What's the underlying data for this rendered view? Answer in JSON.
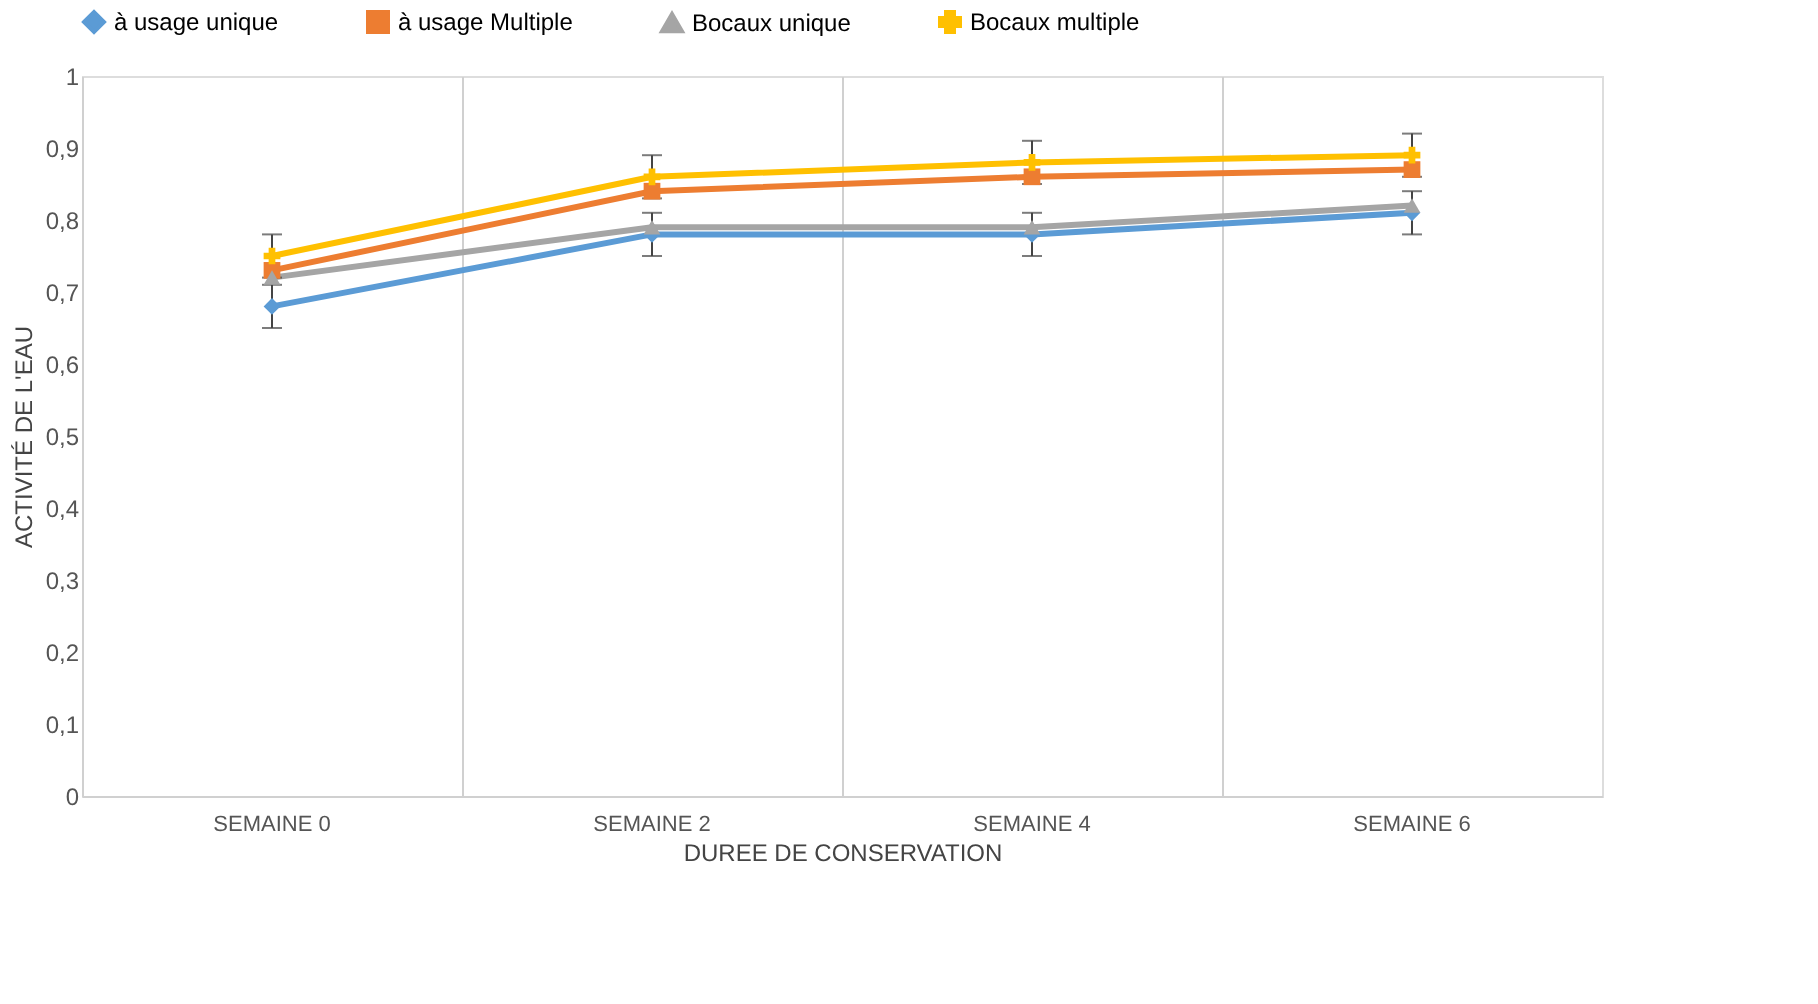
{
  "chart_data": {
    "type": "line",
    "xlabel": "DUREE DE CONSERVATION",
    "ylabel": "ACTIVITÉ DE L'EAU",
    "categories": [
      "SEMAINE 0",
      "SEMAINE 2",
      "SEMAINE 4",
      "SEMAINE 6"
    ],
    "series": [
      {
        "name": "à usage unique",
        "color": "#5b9bd5",
        "marker": "diamond",
        "values": [
          0.68,
          0.78,
          0.78,
          0.81
        ],
        "errors": [
          0.03,
          0.03,
          0.03,
          0.03
        ]
      },
      {
        "name": "à usage Multiple",
        "color": "#ed7d31",
        "marker": "square",
        "values": [
          0.73,
          0.84,
          0.86,
          0.87
        ]
      },
      {
        "name": "Bocaux unique",
        "color": "#a5a5a5",
        "marker": "triangle",
        "values": [
          0.72,
          0.79,
          0.79,
          0.82
        ]
      },
      {
        "name": "Bocaux multiple",
        "color": "#ffc000",
        "marker": "cross",
        "values": [
          0.75,
          0.86,
          0.88,
          0.89
        ],
        "errors": [
          0.03,
          0.03,
          0.03,
          0.03
        ]
      }
    ],
    "ylim": [
      0,
      1
    ],
    "yticks": [
      0,
      {
        "value": 0.1,
        "label": "0,1"
      },
      {
        "value": 0.2,
        "label": "0,2"
      },
      {
        "value": 0.3,
        "label": "0,3"
      },
      {
        "value": 0.4,
        "label": "0,4"
      },
      {
        "value": 0.5,
        "label": "0,5"
      },
      {
        "value": 0.6,
        "label": "0,6"
      },
      {
        "value": 0.7,
        "label": "0,7"
      },
      {
        "value": 0.8,
        "label": "0,8"
      },
      {
        "value": 0.9,
        "label": "0,9"
      },
      1
    ],
    "grid": "x",
    "legend": "top",
    "line_style": "solid"
  }
}
